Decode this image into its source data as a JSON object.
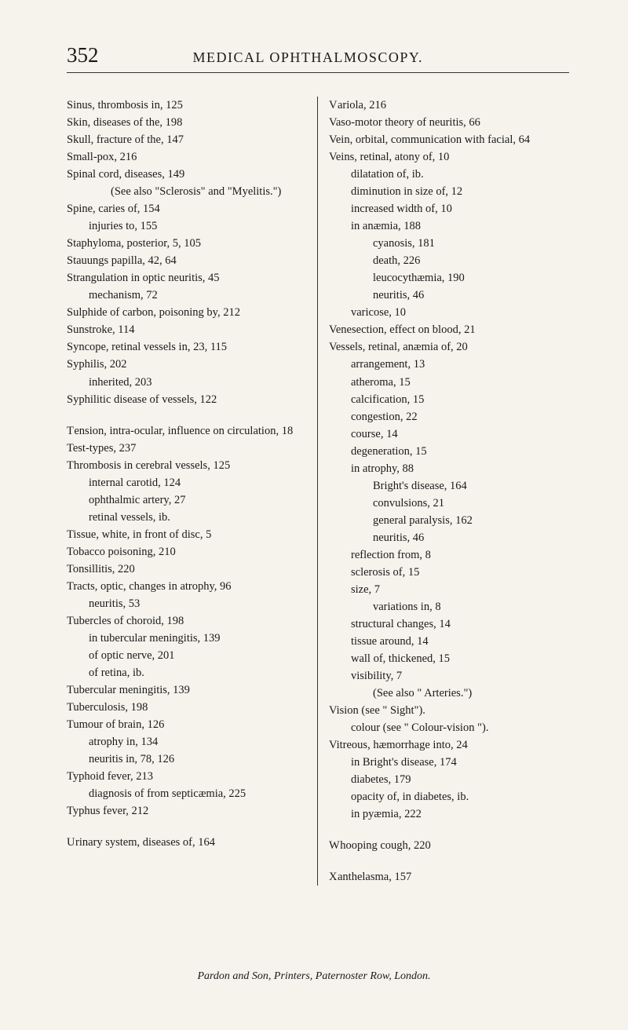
{
  "header": {
    "pageNumber": "352",
    "title": "MEDICAL OPHTHALMOSCOPY."
  },
  "leftColumn": [
    {
      "text": "Sinus, thrombosis in, 125",
      "indent": 0
    },
    {
      "text": "Skin, diseases of the, 198",
      "indent": 0
    },
    {
      "text": "Skull, fracture of the, 147",
      "indent": 0
    },
    {
      "text": "Small-pox, 216",
      "indent": 0
    },
    {
      "text": "Spinal cord, diseases, 149",
      "indent": 0
    },
    {
      "text": "(See also \"Sclerosis\" and \"Myelitis.\")",
      "indent": 2
    },
    {
      "text": "Spine, caries of, 154",
      "indent": 0
    },
    {
      "text": "injuries to, 155",
      "indent": 1
    },
    {
      "text": "Staphyloma, posterior, 5, 105",
      "indent": 0
    },
    {
      "text": "Stauungs papilla, 42, 64",
      "indent": 0
    },
    {
      "text": "Strangulation in optic neuritis, 45",
      "indent": 0
    },
    {
      "text": "mechanism, 72",
      "indent": 1
    },
    {
      "text": "Sulphide of carbon, poisoning by, 212",
      "indent": 0
    },
    {
      "text": "Sunstroke, 114",
      "indent": 0
    },
    {
      "text": "Syncope, retinal vessels in, 23, 115",
      "indent": 0
    },
    {
      "text": "Syphilis, 202",
      "indent": 0
    },
    {
      "text": "inherited, 203",
      "indent": 1
    },
    {
      "text": "Syphilitic disease of vessels, 122",
      "indent": 0
    },
    {
      "text": "",
      "gap": true
    },
    {
      "text": "Tension, intra-ocular, influence on circulation, 18",
      "indent": 0,
      "sc": "T"
    },
    {
      "text": "Test-types, 237",
      "indent": 0
    },
    {
      "text": "Thrombosis in cerebral vessels, 125",
      "indent": 0
    },
    {
      "text": "internal carotid, 124",
      "indent": 1
    },
    {
      "text": "ophthalmic artery, 27",
      "indent": 1
    },
    {
      "text": "retinal vessels, ib.",
      "indent": 1
    },
    {
      "text": "Tissue, white, in front of disc, 5",
      "indent": 0
    },
    {
      "text": "Tobacco poisoning, 210",
      "indent": 0
    },
    {
      "text": "Tonsillitis, 220",
      "indent": 0
    },
    {
      "text": "Tracts, optic, changes in atrophy, 96",
      "indent": 0
    },
    {
      "text": "neuritis, 53",
      "indent": 1
    },
    {
      "text": "Tubercles of choroid, 198",
      "indent": 0
    },
    {
      "text": "in tubercular meningitis, 139",
      "indent": 1
    },
    {
      "text": "of optic nerve, 201",
      "indent": 1
    },
    {
      "text": "of retina, ib.",
      "indent": 1
    },
    {
      "text": "Tubercular meningitis, 139",
      "indent": 0
    },
    {
      "text": "Tuberculosis, 198",
      "indent": 0
    },
    {
      "text": "Tumour of brain, 126",
      "indent": 0
    },
    {
      "text": "atrophy in, 134",
      "indent": 1
    },
    {
      "text": "neuritis in, 78, 126",
      "indent": 1
    },
    {
      "text": "Typhoid fever, 213",
      "indent": 0
    },
    {
      "text": "diagnosis of from septicæmia, 225",
      "indent": 1
    },
    {
      "text": "Typhus fever, 212",
      "indent": 0
    },
    {
      "text": "",
      "gap": true
    },
    {
      "text": "Urinary system, diseases of, 164",
      "indent": 0,
      "sc": "U"
    }
  ],
  "rightColumn": [
    {
      "text": "Variola, 216",
      "indent": 0,
      "sc": "V"
    },
    {
      "text": "Vaso-motor theory of neuritis, 66",
      "indent": 0
    },
    {
      "text": "Vein, orbital, communication with facial, 64",
      "indent": 0
    },
    {
      "text": "Veins, retinal, atony of, 10",
      "indent": 0
    },
    {
      "text": "dilatation of, ib.",
      "indent": 1
    },
    {
      "text": "diminution in size of, 12",
      "indent": 1
    },
    {
      "text": "increased width of, 10",
      "indent": 1
    },
    {
      "text": "in anæmia, 188",
      "indent": 1
    },
    {
      "text": "cyanosis, 181",
      "indent": 2
    },
    {
      "text": "death, 226",
      "indent": 2
    },
    {
      "text": "leucocythæmia, 190",
      "indent": 2
    },
    {
      "text": "neuritis, 46",
      "indent": 2
    },
    {
      "text": "varicose, 10",
      "indent": 1
    },
    {
      "text": "Venesection, effect on blood, 21",
      "indent": 0
    },
    {
      "text": "Vessels, retinal, anæmia of, 20",
      "indent": 0
    },
    {
      "text": "arrangement, 13",
      "indent": 1
    },
    {
      "text": "atheroma, 15",
      "indent": 1
    },
    {
      "text": "calcification, 15",
      "indent": 1
    },
    {
      "text": "congestion, 22",
      "indent": 1
    },
    {
      "text": "course, 14",
      "indent": 1
    },
    {
      "text": "degeneration, 15",
      "indent": 1
    },
    {
      "text": "in atrophy, 88",
      "indent": 1
    },
    {
      "text": "Bright's disease, 164",
      "indent": 2
    },
    {
      "text": "convulsions, 21",
      "indent": 2
    },
    {
      "text": "general paralysis, 162",
      "indent": 2
    },
    {
      "text": "neuritis, 46",
      "indent": 2
    },
    {
      "text": "reflection from, 8",
      "indent": 1
    },
    {
      "text": "sclerosis of, 15",
      "indent": 1
    },
    {
      "text": "size, 7",
      "indent": 1
    },
    {
      "text": "variations in, 8",
      "indent": 2
    },
    {
      "text": "structural changes, 14",
      "indent": 1
    },
    {
      "text": "tissue around, 14",
      "indent": 1
    },
    {
      "text": "wall of, thickened, 15",
      "indent": 1
    },
    {
      "text": "visibility, 7",
      "indent": 1
    },
    {
      "text": "(See also \" Arteries.\")",
      "indent": 2
    },
    {
      "text": "Vision (see \" Sight\").",
      "indent": 0
    },
    {
      "text": "colour (see \" Colour-vision \").",
      "indent": 1
    },
    {
      "text": "Vitreous, hæmorrhage into, 24",
      "indent": 0
    },
    {
      "text": "in Bright's disease, 174",
      "indent": 1
    },
    {
      "text": "diabetes, 179",
      "indent": 1
    },
    {
      "text": "opacity of, in diabetes, ib.",
      "indent": 1
    },
    {
      "text": "in pyæmia, 222",
      "indent": 1
    },
    {
      "text": "",
      "gap": true
    },
    {
      "text": "Whooping cough, 220",
      "indent": 0,
      "sc": "W"
    },
    {
      "text": "",
      "gap": true
    },
    {
      "text": "Xanthelasma, 157",
      "indent": 0,
      "sc": "X"
    }
  ],
  "footer": "Pardon and Son, Printers, Paternoster Row, London."
}
